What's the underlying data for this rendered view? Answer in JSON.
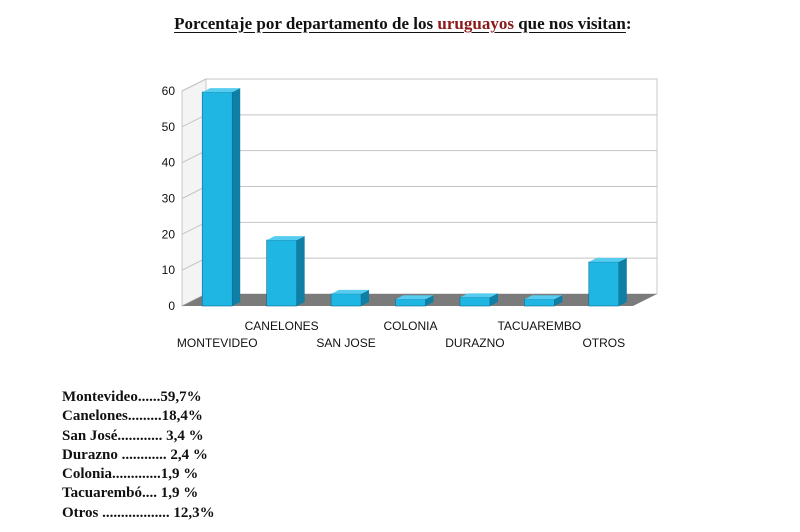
{
  "title": {
    "before": "Porcentaje por departamento de los ",
    "highlight": "uruguayos",
    "after": " que nos visitan",
    "colon": ":"
  },
  "colors": {
    "bar_front": "#1fb6e3",
    "bar_side": "#0f7fa5",
    "bar_top": "#56cdf0",
    "floor": "#7b7b7b",
    "title_highlight": "#8b1a1a"
  },
  "chart_data": {
    "type": "bar",
    "categories": [
      "MONTEVIDEO",
      "CANELONES",
      "SAN JOSE",
      "COLONIA",
      "DURAZNO",
      "TACUAREMBO",
      "OTROS"
    ],
    "values": [
      59.7,
      18.4,
      3.4,
      1.9,
      2.4,
      1.9,
      12.3
    ],
    "ylim": [
      0,
      60
    ],
    "yticks": [
      "0",
      "10",
      "20",
      "30",
      "40",
      "50",
      "60"
    ],
    "grid": true,
    "style": "3d"
  },
  "legend": [
    "Montevideo......59,7%",
    "Canelones.........18,4%",
    "San José............ 3,4 %",
    "Durazno ............ 2,4 %",
    "Colonia.............1,9 %",
    "Tacuarembó.... 1,9 %",
    "Otros .................. 12,3%"
  ]
}
